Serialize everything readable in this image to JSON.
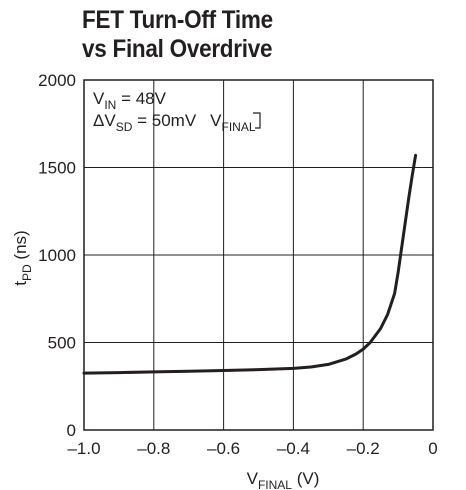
{
  "chart_data": {
    "type": "line",
    "title_line1": "FET Turn-Off Time",
    "title_line2": "vs Final Overdrive",
    "xlabel": {
      "main": "V",
      "sub": "FINAL",
      "unit": " (V)"
    },
    "ylabel": {
      "main": "t",
      "sub": "PD",
      "unit": " (ns)"
    },
    "xlim": [
      -1.0,
      0
    ],
    "ylim": [
      0,
      2000
    ],
    "x_ticks": [
      -1.0,
      -0.8,
      -0.6,
      -0.4,
      -0.2,
      0
    ],
    "x_tick_labels": [
      "–1.0",
      "–0.8",
      "–0.6",
      "–0.4",
      "–0.2",
      "0"
    ],
    "y_ticks": [
      0,
      500,
      1000,
      1500,
      2000
    ],
    "y_tick_labels": [
      "0",
      "500",
      "1000",
      "1500",
      "2000"
    ],
    "grid": true,
    "annotations": {
      "line1": {
        "main": "V",
        "sub": "IN",
        "rest": " = 48V"
      },
      "line2": {
        "main": "ΔV",
        "sub": "SD",
        "rest": " = 50mV",
        "tail_main": "V",
        "tail_sub": "FINAL"
      }
    },
    "series": [
      {
        "x": [
          -1.0,
          -0.9,
          -0.8,
          -0.7,
          -0.6,
          -0.5,
          -0.4,
          -0.35,
          -0.3,
          -0.25,
          -0.22,
          -0.2,
          -0.18,
          -0.15,
          -0.13,
          -0.11,
          -0.1,
          -0.09,
          -0.08,
          -0.07,
          -0.06,
          -0.05
        ],
        "y": [
          325,
          328,
          332,
          336,
          340,
          345,
          352,
          360,
          375,
          405,
          435,
          462,
          500,
          580,
          660,
          780,
          900,
          1040,
          1180,
          1320,
          1450,
          1570
        ],
        "color": "#231f20"
      }
    ]
  }
}
